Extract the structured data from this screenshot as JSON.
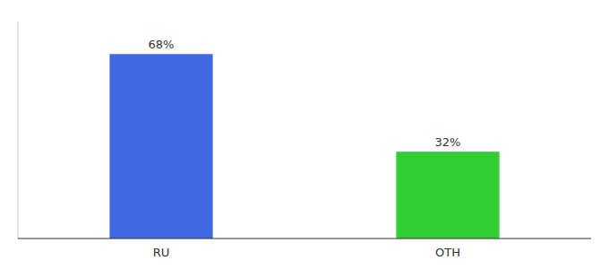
{
  "chart_data": {
    "type": "bar",
    "categories": [
      "RU",
      "OTH"
    ],
    "values": [
      68,
      32
    ],
    "value_labels": [
      "68%",
      "32%"
    ],
    "colors": [
      "#4169e1",
      "#33cc33"
    ],
    "ylim": [
      0,
      80
    ],
    "data_labels": true,
    "tick_labels": "x",
    "grid": false
  }
}
